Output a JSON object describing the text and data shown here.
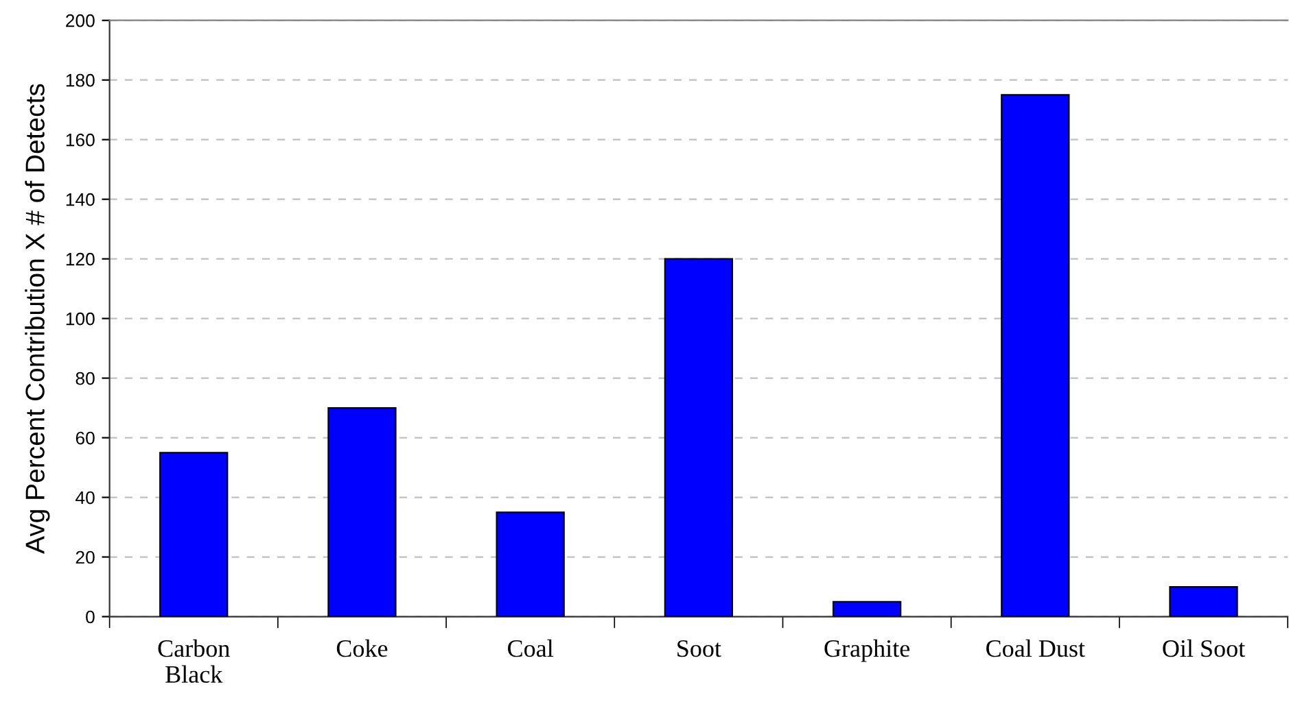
{
  "chart_data": {
    "type": "bar",
    "ylabel": "Avg Percent Contribution X # of Detects",
    "categories": [
      "Carbon\nBlack",
      "Coke",
      "Coal",
      "Soot",
      "Graphite",
      "Coal Dust",
      "Oil Soot"
    ],
    "values": [
      55,
      70,
      35,
      120,
      5,
      175,
      10
    ],
    "color": "#0000ff",
    "ylim": [
      0,
      200
    ],
    "yticks": [
      0,
      20,
      40,
      60,
      80,
      100,
      120,
      140,
      160,
      180,
      200
    ],
    "grid": "y"
  }
}
